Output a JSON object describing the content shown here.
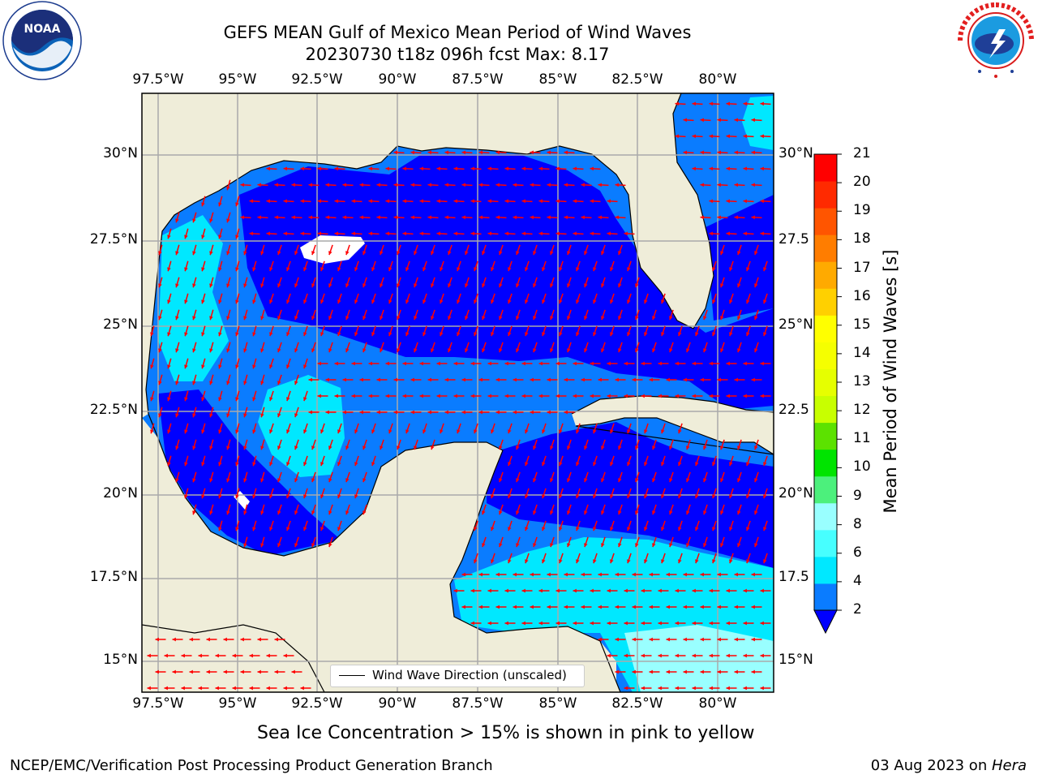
{
  "header": {
    "title_line1": "GEFS MEAN Gulf of Mexico Mean Period of Wind Waves",
    "title_line2": "20230730 t18z 096h fcst   Max: 8.17"
  },
  "axes": {
    "lon_labels": [
      "97.5°W",
      "95°W",
      "92.5°W",
      "90°W",
      "87.5°W",
      "85°W",
      "82.5°W",
      "80°W"
    ],
    "lat_labels_left": [
      "30°N",
      "27.5°N",
      "25°N",
      "22.5°N",
      "20°N",
      "17.5°N",
      "15°N"
    ],
    "lat_labels_right": [
      "30°N",
      "27.5",
      "25°N",
      "22.5",
      "20°N",
      "17.5",
      "15°N"
    ]
  },
  "legend": {
    "label": "Wind Wave Direction (unscaled)"
  },
  "colorbar": {
    "label": "Mean Period of Wind Waves [s]",
    "ticks": [
      "21",
      "20",
      "19",
      "18",
      "17",
      "16",
      "15",
      "14",
      "13",
      "12",
      "11",
      "10",
      "9",
      "8",
      "6",
      "4",
      "2"
    ],
    "levels": [
      {
        "lo": 2,
        "hi": 4,
        "color": "#0a7cff"
      },
      {
        "lo": 4,
        "hi": 6,
        "color": "#00e8ff"
      },
      {
        "lo": 6,
        "hi": 8,
        "color": "#47ffff"
      },
      {
        "lo": 8,
        "hi": 9,
        "color": "#99ffff"
      },
      {
        "lo": 9,
        "hi": 10,
        "color": "#4cf07c"
      },
      {
        "lo": 10,
        "hi": 11,
        "color": "#00e400"
      },
      {
        "lo": 11,
        "hi": 12,
        "color": "#5ce200"
      },
      {
        "lo": 12,
        "hi": 13,
        "color": "#c8ff00"
      },
      {
        "lo": 13,
        "hi": 14,
        "color": "#e6ff00"
      },
      {
        "lo": 14,
        "hi": 15,
        "color": "#f5ff00"
      },
      {
        "lo": 15,
        "hi": 16,
        "color": "#ffff00"
      },
      {
        "lo": 16,
        "hi": 17,
        "color": "#ffd000"
      },
      {
        "lo": 17,
        "hi": 18,
        "color": "#ffaa00"
      },
      {
        "lo": 18,
        "hi": 19,
        "color": "#ff7d00"
      },
      {
        "lo": 19,
        "hi": 20,
        "color": "#ff5500"
      },
      {
        "lo": 20,
        "hi": 21,
        "color": "#ff2a00"
      },
      {
        "lo": 21,
        "hi": 22,
        "color": "#ff0000"
      }
    ],
    "under_color": "#0000ff"
  },
  "colors": {
    "land": "#efedd9",
    "deep": "#0000ff",
    "mid": "#0a7cff",
    "light": "#00e8ff",
    "pale": "#99ffff",
    "arrow": "#ff0000",
    "grid": "#aaaaaa"
  },
  "notes": {
    "ice": "Sea Ice Concentration > 15% is shown in pink to yellow"
  },
  "footer": {
    "left": "NCEP/EMC/Verification Post Processing Product Generation Branch",
    "right_date": "03 Aug 2023 on ",
    "right_host": "Hera"
  },
  "logos": {
    "left": {
      "icon": "noaa-logo",
      "text": "NOAA"
    },
    "right": {
      "icon": "nws-logo",
      "text": "NATIONAL WEATHER SERVICE"
    }
  }
}
